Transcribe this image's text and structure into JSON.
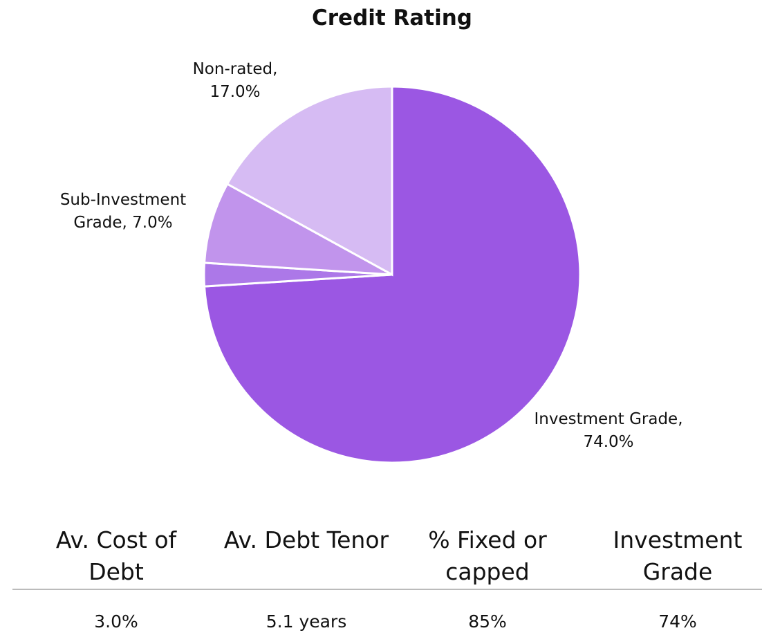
{
  "chart_data": {
    "type": "pie",
    "title": "Credit Rating",
    "categories": [
      "Investment Grade,",
      null,
      "Sub-Investment Grade,",
      "Non-rated,"
    ],
    "values": [
      74,
      2,
      7,
      17
    ],
    "value_labels": [
      "74.0%",
      null,
      "7.0%",
      "17.0%"
    ],
    "colors": [
      "#9b57e3",
      "#ac78e8",
      "#c194ec",
      "#d6bbf3"
    ]
  },
  "table": {
    "headers": [
      "Av. Cost of Debt",
      "Av. Debt Tenor",
      "% Fixed or capped",
      "Investment Grade"
    ],
    "rows": [
      [
        "3.0%",
        "5.1 years",
        "85%",
        "74%"
      ]
    ]
  }
}
